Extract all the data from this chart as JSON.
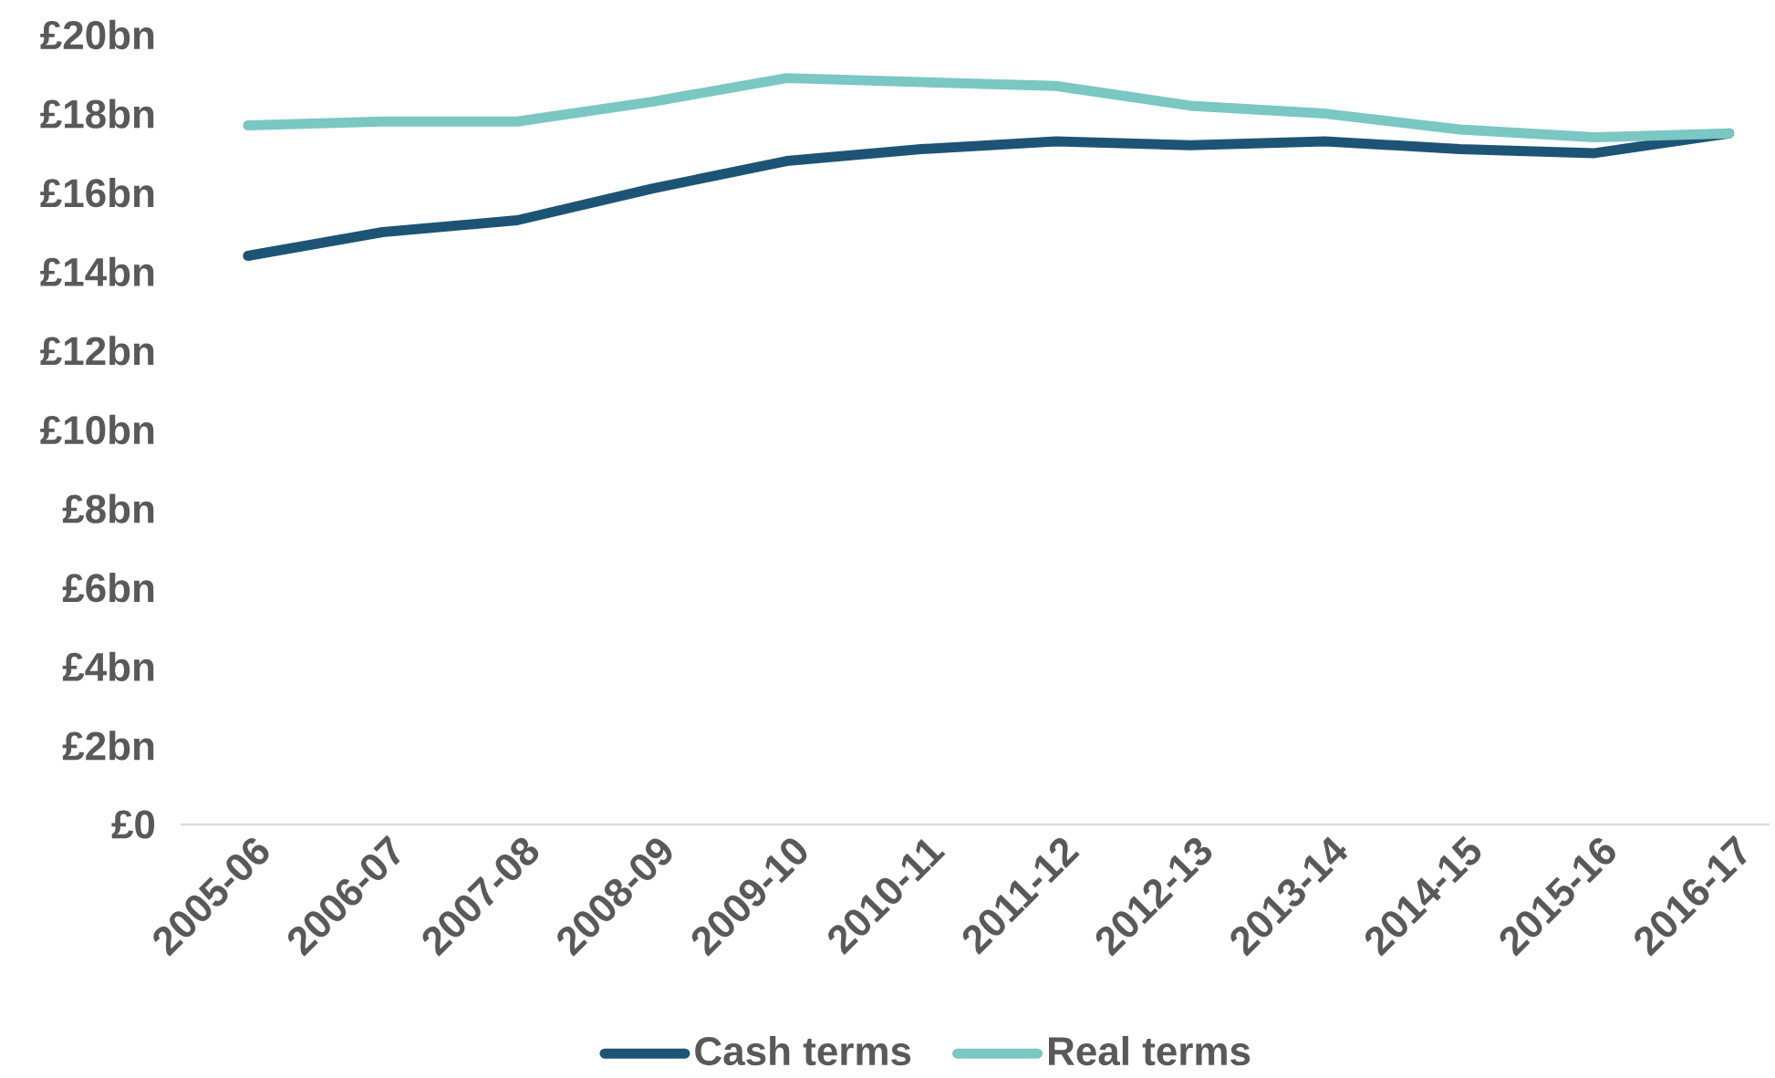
{
  "chart_data": {
    "type": "line",
    "categories": [
      "2005-06",
      "2006-07",
      "2007-08",
      "2008-09",
      "2009-10",
      "2010-11",
      "2011-12",
      "2012-13",
      "2013-14",
      "2014-15",
      "2015-16",
      "2016-17"
    ],
    "series": [
      {
        "name": "Cash terms",
        "color": "#1d5475",
        "values": [
          14.4,
          15.0,
          15.3,
          16.1,
          16.8,
          17.1,
          17.3,
          17.2,
          17.3,
          17.1,
          17.0,
          17.5
        ]
      },
      {
        "name": "Real terms",
        "color": "#7ac7c3",
        "values": [
          17.7,
          17.8,
          17.8,
          18.3,
          18.9,
          18.8,
          18.7,
          18.2,
          18.0,
          17.6,
          17.4,
          17.5
        ]
      }
    ],
    "ylim": [
      0,
      20
    ],
    "yticks": [
      {
        "value": 0,
        "label": "£0"
      },
      {
        "value": 2,
        "label": "£2bn"
      },
      {
        "value": 4,
        "label": "£4bn"
      },
      {
        "value": 6,
        "label": "£6bn"
      },
      {
        "value": 8,
        "label": "£8bn"
      },
      {
        "value": 10,
        "label": "£10bn"
      },
      {
        "value": 12,
        "label": "£12bn"
      },
      {
        "value": 14,
        "label": "£14bn"
      },
      {
        "value": 16,
        "label": "£16bn"
      },
      {
        "value": 18,
        "label": "£18bn"
      },
      {
        "value": 20,
        "label": "£20bn"
      }
    ],
    "legend": "bottom",
    "line_style": "solid"
  }
}
